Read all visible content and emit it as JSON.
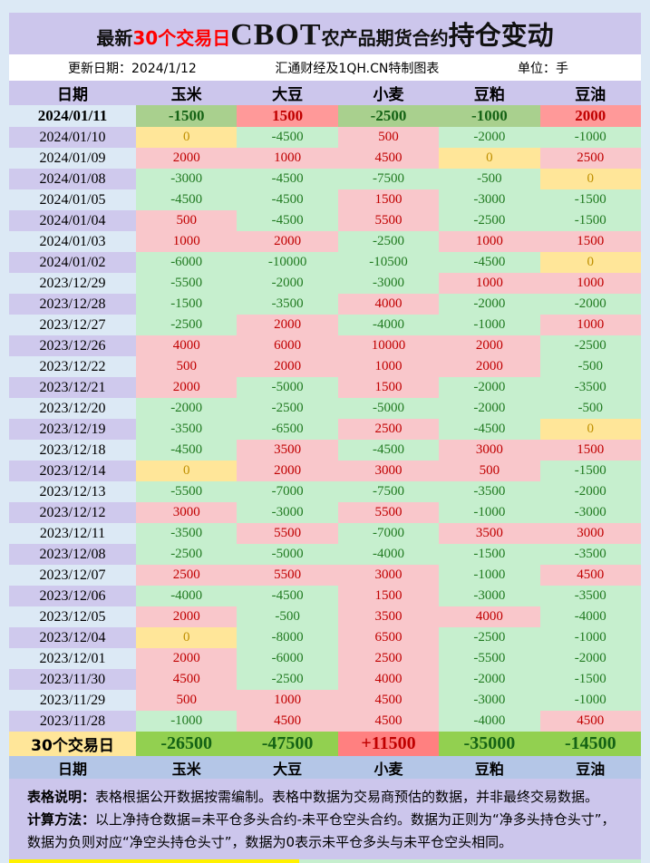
{
  "title": {
    "prefix": "最新",
    "highlight": "30个交易日",
    "brand": "CBOT",
    "middle": "农产品期货合约",
    "suffix": "持仓变动"
  },
  "meta": {
    "update_label": "更新日期：",
    "update_date": "2024/1/12",
    "source": "汇通财经及1QH.CN特制图表",
    "unit_label": "单位：",
    "unit_value": "手"
  },
  "chart_data": {
    "type": "table",
    "title": "最新30个交易日CBOT农产品期货合约持仓变动",
    "unit": "手",
    "columns": [
      "日期",
      "玉米",
      "大豆",
      "小麦",
      "豆粕",
      "豆油"
    ],
    "rows": [
      {
        "date": "2024/01/11",
        "values": [
          "-1500",
          "1500",
          "-2500",
          "-1000",
          "2000"
        ]
      },
      {
        "date": "2024/01/10",
        "values": [
          "0",
          "-4500",
          "500",
          "-2000",
          "-1000"
        ]
      },
      {
        "date": "2024/01/09",
        "values": [
          "2000",
          "1000",
          "4500",
          "0",
          "2500"
        ]
      },
      {
        "date": "2024/01/08",
        "values": [
          "-3000",
          "-4500",
          "-7500",
          "-500",
          "0"
        ]
      },
      {
        "date": "2024/01/05",
        "values": [
          "-4500",
          "-4500",
          "1500",
          "-3000",
          "-1500"
        ]
      },
      {
        "date": "2024/01/04",
        "values": [
          "500",
          "-4500",
          "5500",
          "-2500",
          "-1500"
        ]
      },
      {
        "date": "2024/01/03",
        "values": [
          "1000",
          "2000",
          "-2500",
          "1000",
          "1500"
        ]
      },
      {
        "date": "2024/01/02",
        "values": [
          "-6000",
          "-10000",
          "-10500",
          "-4500",
          "0"
        ]
      },
      {
        "date": "2023/12/29",
        "values": [
          "-5500",
          "-2000",
          "-3000",
          "1000",
          "1000"
        ]
      },
      {
        "date": "2023/12/28",
        "values": [
          "-1500",
          "-3500",
          "4000",
          "-2000",
          "-2000"
        ]
      },
      {
        "date": "2023/12/27",
        "values": [
          "-2500",
          "2000",
          "-4000",
          "-1000",
          "1000"
        ]
      },
      {
        "date": "2023/12/26",
        "values": [
          "4000",
          "6000",
          "10000",
          "2000",
          "-2500"
        ]
      },
      {
        "date": "2023/12/22",
        "values": [
          "500",
          "2000",
          "1000",
          "2000",
          "-500"
        ]
      },
      {
        "date": "2023/12/21",
        "values": [
          "2000",
          "-5000",
          "1500",
          "-2000",
          "-3500"
        ]
      },
      {
        "date": "2023/12/20",
        "values": [
          "-2000",
          "-2500",
          "-5000",
          "-2000",
          "-500"
        ]
      },
      {
        "date": "2023/12/19",
        "values": [
          "-3500",
          "-6500",
          "2500",
          "-4500",
          "0"
        ]
      },
      {
        "date": "2023/12/18",
        "values": [
          "-4500",
          "3500",
          "-4500",
          "3000",
          "1500"
        ]
      },
      {
        "date": "2023/12/14",
        "values": [
          "0",
          "2000",
          "3000",
          "500",
          "-1500"
        ]
      },
      {
        "date": "2023/12/13",
        "values": [
          "-5500",
          "-7000",
          "-7500",
          "-3500",
          "-2000"
        ]
      },
      {
        "date": "2023/12/12",
        "values": [
          "3000",
          "-3000",
          "5500",
          "-1000",
          "-3000"
        ]
      },
      {
        "date": "2023/12/11",
        "values": [
          "-3500",
          "5500",
          "-7000",
          "3500",
          "3000"
        ]
      },
      {
        "date": "2023/12/08",
        "values": [
          "-2500",
          "-5000",
          "-4000",
          "-1500",
          "-3500"
        ]
      },
      {
        "date": "2023/12/07",
        "values": [
          "2500",
          "5500",
          "3000",
          "-1000",
          "4500"
        ]
      },
      {
        "date": "2023/12/06",
        "values": [
          "-4000",
          "-4500",
          "1500",
          "-3000",
          "-3500"
        ]
      },
      {
        "date": "2023/12/05",
        "values": [
          "2000",
          "-500",
          "3500",
          "4000",
          "-4000"
        ]
      },
      {
        "date": "2023/12/04",
        "values": [
          "0",
          "-8000",
          "6500",
          "-2500",
          "-1000"
        ]
      },
      {
        "date": "2023/12/01",
        "values": [
          "2000",
          "-6000",
          "2500",
          "-5500",
          "-2000"
        ]
      },
      {
        "date": "2023/11/30",
        "values": [
          "4500",
          "-2500",
          "4000",
          "-2000",
          "-1500"
        ]
      },
      {
        "date": "2023/11/29",
        "values": [
          "500",
          "1000",
          "4500",
          "-3000",
          "-1000"
        ]
      },
      {
        "date": "2023/11/28",
        "values": [
          "-1000",
          "4500",
          "4500",
          "-4000",
          "4500"
        ]
      }
    ],
    "total": {
      "label": "30个交易日",
      "values": [
        "-26500",
        "-47500",
        "+11500",
        "-35000",
        "-14500"
      ]
    },
    "legend": {
      "positive_fill": "#f9c7cb",
      "negative_fill": "#c6efce",
      "zero_fill": "#ffe699",
      "total_negative_fill": "#92d050",
      "total_positive_fill": "#ff8080",
      "positive_text": "#c00000",
      "negative_text": "#217a21",
      "zero_text": "#bf8f00"
    }
  },
  "notes": [
    {
      "label": "表格说明：",
      "text": "表格根据公开数据按需编制。表格中数据为交易商预估的数据，并非最终交易数据。"
    },
    {
      "label": "计算方法：",
      "text": "以上净持仓数据=未平仓多头合约-未平仓空头合约。数据为正则为“净多头持仓头寸”，数据为负则对应“净空头持仓头寸”，数据为0表示未平仓多头与未平仓空头相同。"
    }
  ]
}
